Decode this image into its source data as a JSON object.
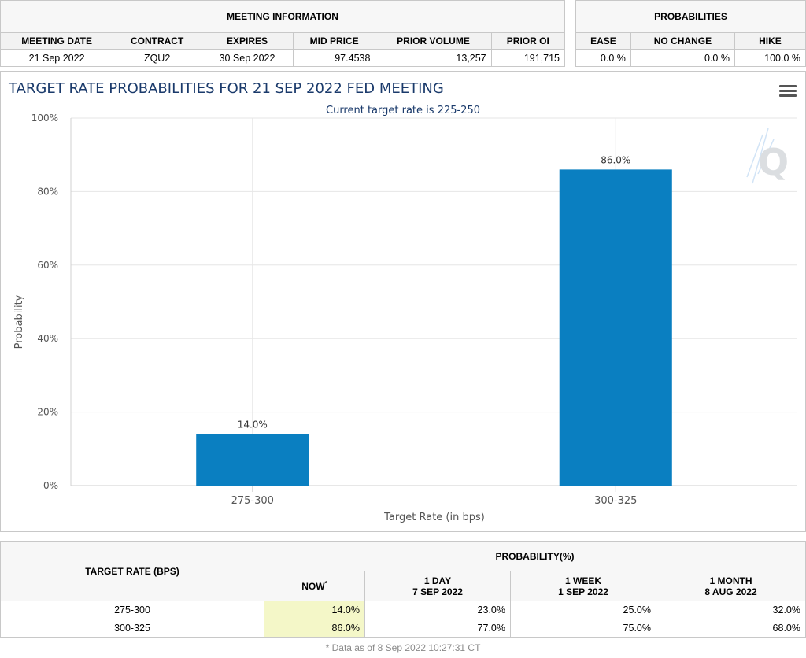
{
  "meeting": {
    "title": "MEETING INFORMATION",
    "headers": [
      "MEETING DATE",
      "CONTRACT",
      "EXPIRES",
      "MID PRICE",
      "PRIOR VOLUME",
      "PRIOR OI"
    ],
    "row": [
      "21 Sep 2022",
      "ZQU2",
      "30 Sep 2022",
      "97.4538",
      "13,257",
      "191,715"
    ]
  },
  "probabilities": {
    "title": "PROBABILITIES",
    "headers": [
      "EASE",
      "NO CHANGE",
      "HIKE"
    ],
    "row": [
      "0.0 %",
      "0.0 %",
      "100.0 %"
    ]
  },
  "chart_data": {
    "type": "bar",
    "title": "TARGET RATE PROBABILITIES FOR 21 SEP 2022 FED MEETING",
    "subtitle": "Current target rate is 225-250",
    "categories": [
      "275-300",
      "300-325"
    ],
    "values": [
      14.0,
      86.0
    ],
    "data_labels": [
      "14.0%",
      "86.0%"
    ],
    "xlabel": "Target Rate (in bps)",
    "ylabel": "Probability",
    "ylim": [
      0,
      100
    ],
    "yticks": [
      "0%",
      "20%",
      "40%",
      "60%",
      "80%",
      "100%"
    ],
    "grid": true,
    "bar_color": "#0a7fc1"
  },
  "prob_table": {
    "target_header": "TARGET RATE (BPS)",
    "prob_header": "PROBABILITY(%)",
    "now_label": "NOW",
    "now_mark": "*",
    "cols": [
      {
        "line1": "1 DAY",
        "line2": "7 SEP 2022"
      },
      {
        "line1": "1 WEEK",
        "line2": "1 SEP 2022"
      },
      {
        "line1": "1 MONTH",
        "line2": "8 AUG 2022"
      }
    ],
    "rows": [
      {
        "rate": "275-300",
        "now": "14.0%",
        "day": "23.0%",
        "week": "25.0%",
        "month": "32.0%"
      },
      {
        "rate": "300-325",
        "now": "86.0%",
        "day": "77.0%",
        "week": "75.0%",
        "month": "68.0%"
      }
    ],
    "footnote": "* Data as of 8 Sep 2022 10:27:31 CT"
  },
  "icons": {
    "menu": "hamburger-menu-icon",
    "watermark": "q-logo-watermark"
  }
}
